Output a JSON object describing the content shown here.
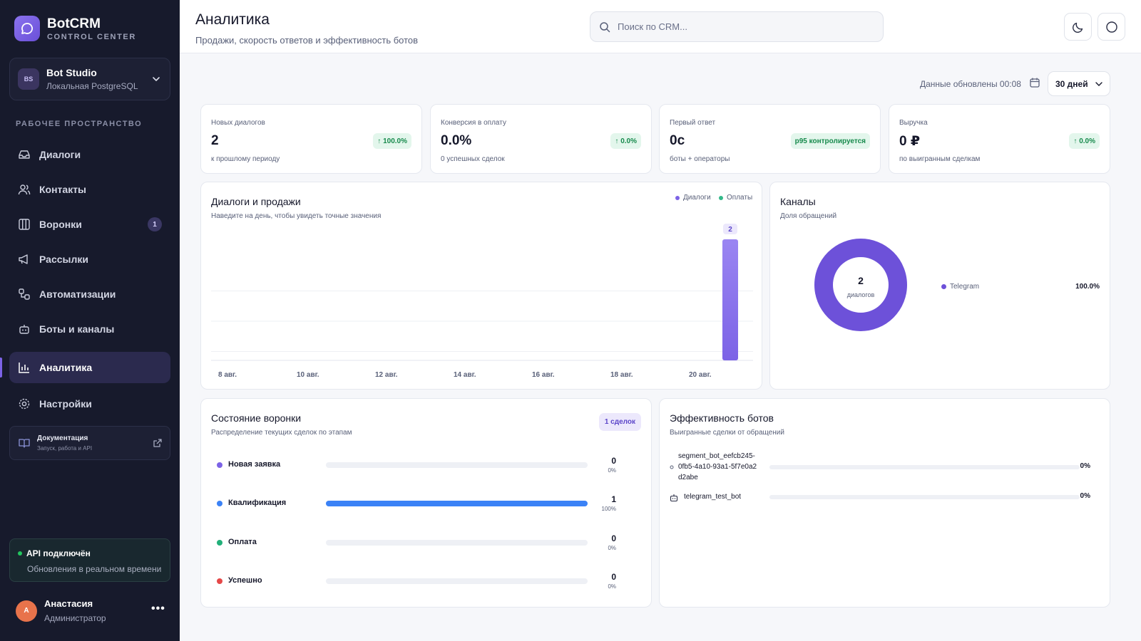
{
  "app": {
    "name": "BotCRM",
    "subtitle": "CONTROL CENTER"
  },
  "workspace": {
    "initials": "BS",
    "name": "Bot Studio",
    "db": "Локальная PostgreSQL"
  },
  "sidebar": {
    "section_label": "РАБОЧЕЕ ПРОСТРАНСТВО",
    "items": [
      {
        "label": "Диалоги",
        "icon": "inbox-icon"
      },
      {
        "label": "Контакты",
        "icon": "users-icon"
      },
      {
        "label": "Воронки",
        "icon": "columns-icon",
        "badge": "1"
      },
      {
        "label": "Рассылки",
        "icon": "megaphone-icon"
      },
      {
        "label": "Автоматизации",
        "icon": "workflow-icon"
      },
      {
        "label": "Боты и каналы",
        "icon": "bot-icon"
      },
      {
        "label": "Аналитика",
        "icon": "bar-chart-icon",
        "active": true
      },
      {
        "label": "Настройки",
        "icon": "gear-icon"
      }
    ],
    "docs": {
      "title": "Документация",
      "subtitle": "Запуск, работа и API"
    },
    "api": {
      "title": "API подключён",
      "subtitle": "Обновления в реальном времени",
      "status_color": "#22c55e"
    },
    "user": {
      "initial": "А",
      "name": "Анастасия",
      "role": "Администратор",
      "more": "•••"
    }
  },
  "header": {
    "title": "Аналитика",
    "subtitle": "Продажи, скорость ответов и эффективность ботов",
    "search_placeholder": "Поиск по CRM..."
  },
  "toolbar": {
    "updated": "Данные обновлены 00:08",
    "period": "30 дней"
  },
  "kpis": [
    {
      "label": "Новых диалогов",
      "value": "2",
      "badge": "↑ 100.0%",
      "sub": "к прошлому периоду"
    },
    {
      "label": "Конверсия в оплату",
      "value": "0.0%",
      "badge": "↑ 0.0%",
      "sub": "0 успешных сделок"
    },
    {
      "label": "Первый ответ",
      "value": "0с",
      "badge": "p95 контролируется",
      "sub": "боты + операторы"
    },
    {
      "label": "Выручка",
      "value": "0 ₽",
      "badge": "↑ 0.0%",
      "sub": "по выигранным сделкам"
    }
  ],
  "sales_chart": {
    "title": "Диалоги и продажи",
    "subtitle": "Наведите на день, чтобы увидеть точные значения",
    "legend": [
      {
        "name": "Диалоги",
        "color": "#7c63e6"
      },
      {
        "name": "Оплаты",
        "color": "#34b98a"
      }
    ]
  },
  "channels": {
    "title": "Каналы",
    "subtitle": "Доля обращений",
    "center_value": "2",
    "center_label": "диалогов",
    "items": [
      {
        "name": "Telegram",
        "pct": "100.0%",
        "color": "#6d51d9"
      }
    ]
  },
  "funnel": {
    "title": "Состояние воронки",
    "subtitle": "Распределение текущих сделок по этапам",
    "badge": "1 сделок",
    "stages": [
      {
        "name": "Новая заявка",
        "count": "0",
        "pct": "0%",
        "fraction": 0,
        "color": "#7c63e6"
      },
      {
        "name": "Квалификация",
        "count": "1",
        "pct": "100%",
        "fraction": 1,
        "color": "#3b82f6"
      },
      {
        "name": "Оплата",
        "count": "0",
        "pct": "0%",
        "fraction": 0,
        "color": "#22b07a"
      },
      {
        "name": "Успешно",
        "count": "0",
        "pct": "0%",
        "fraction": 0,
        "color": "#e54848"
      }
    ]
  },
  "bots": {
    "title": "Эффективность ботов",
    "subtitle": "Выигранные сделки от обращений",
    "items": [
      {
        "name": "segment_bot_eefcb245-0fb5-4a10-93a1-5f7e0a2d2abe",
        "pct": "0%",
        "fraction": 0,
        "icon": "small-dot-icon"
      },
      {
        "name": "telegram_test_bot",
        "pct": "0%",
        "fraction": 0,
        "icon": "bot-icon"
      }
    ]
  },
  "chart_data": {
    "type": "bar",
    "title": "Диалоги и продажи",
    "x_tick_labels": [
      "8 авг.",
      "10 авг.",
      "12 авг.",
      "14 авг.",
      "16 авг.",
      "18 авг.",
      "20 авг."
    ],
    "series": [
      {
        "name": "Диалоги",
        "color": "#7c63e6",
        "points": [
          {
            "x": "21 авг.",
            "y": 2
          }
        ]
      },
      {
        "name": "Оплаты",
        "color": "#34b98a",
        "points": []
      }
    ],
    "data_labels": [
      "2"
    ],
    "grid": true,
    "legend": "top-right"
  }
}
